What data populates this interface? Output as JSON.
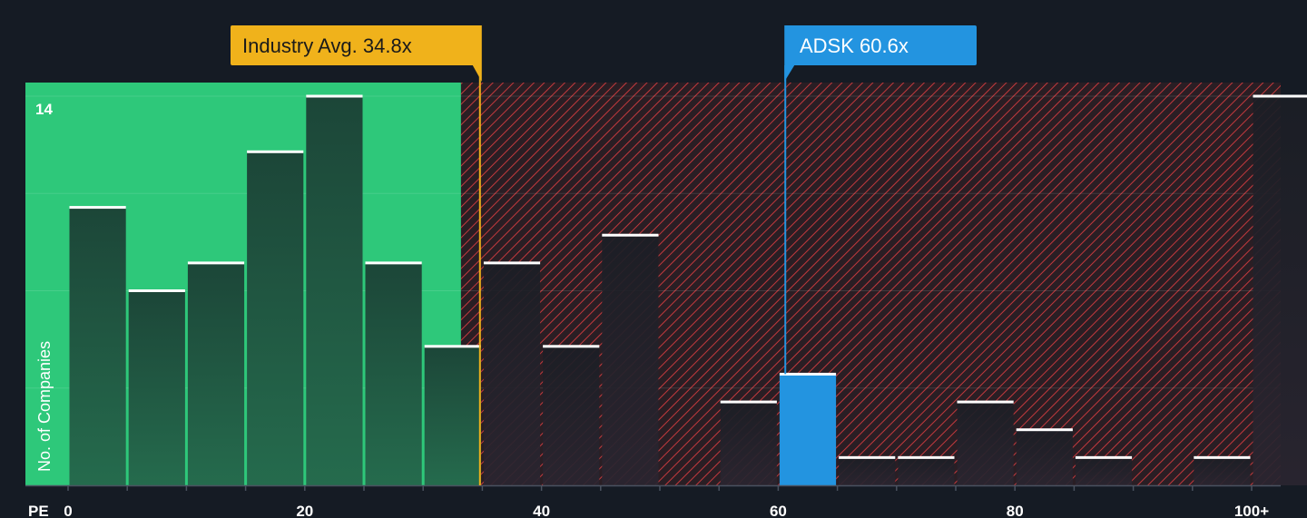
{
  "chart_data": {
    "type": "bar",
    "xlabel": "PE",
    "ylabel": "No. of Companies",
    "ylim": [
      0,
      14
    ],
    "y_tick_label": "14",
    "x_ticks": [
      {
        "value": 0,
        "label": "0"
      },
      {
        "value": 20,
        "label": "20"
      },
      {
        "value": 40,
        "label": "40"
      },
      {
        "value": 60,
        "label": "60"
      },
      {
        "value": 80,
        "label": "80"
      },
      {
        "value": 100,
        "label": "100+"
      }
    ],
    "bins": [
      {
        "start": 0,
        "end": 5,
        "value": 10
      },
      {
        "start": 5,
        "end": 10,
        "value": 7
      },
      {
        "start": 10,
        "end": 15,
        "value": 8
      },
      {
        "start": 15,
        "end": 20,
        "value": 12
      },
      {
        "start": 20,
        "end": 25,
        "value": 14
      },
      {
        "start": 25,
        "end": 30,
        "value": 8
      },
      {
        "start": 30,
        "end": 35,
        "value": 5
      },
      {
        "start": 35,
        "end": 40,
        "value": 8
      },
      {
        "start": 40,
        "end": 45,
        "value": 5
      },
      {
        "start": 45,
        "end": 50,
        "value": 9
      },
      {
        "start": 50,
        "end": 55,
        "value": 0
      },
      {
        "start": 55,
        "end": 60,
        "value": 3
      },
      {
        "start": 60,
        "end": 65,
        "value": 4,
        "highlight": true
      },
      {
        "start": 65,
        "end": 70,
        "value": 1
      },
      {
        "start": 70,
        "end": 75,
        "value": 1
      },
      {
        "start": 75,
        "end": 80,
        "value": 3
      },
      {
        "start": 80,
        "end": 85,
        "value": 2
      },
      {
        "start": 85,
        "end": 90,
        "value": 1
      },
      {
        "start": 90,
        "end": 95,
        "value": 0
      },
      {
        "start": 95,
        "end": 100,
        "value": 1
      },
      {
        "start": 100,
        "end": 105,
        "value": 14
      }
    ],
    "industry_avg": {
      "value": 34.8,
      "label": "Industry Avg. 34.8x"
    },
    "company": {
      "value": 60.6,
      "label": "ADSK 60.6x"
    },
    "fair_zone_end": 33.2,
    "colors": {
      "background": "#151b24",
      "fair_zone": "#2ec87a",
      "bar_in_fair": "#1f4a3c",
      "bar_in_over": "#1e2128",
      "highlight_bar": "#2394e0",
      "bar_cap": "#ffffff",
      "industry_line": "#f0b21b",
      "company_line": "#2394e0",
      "hatch_red": "#c2393d"
    }
  }
}
